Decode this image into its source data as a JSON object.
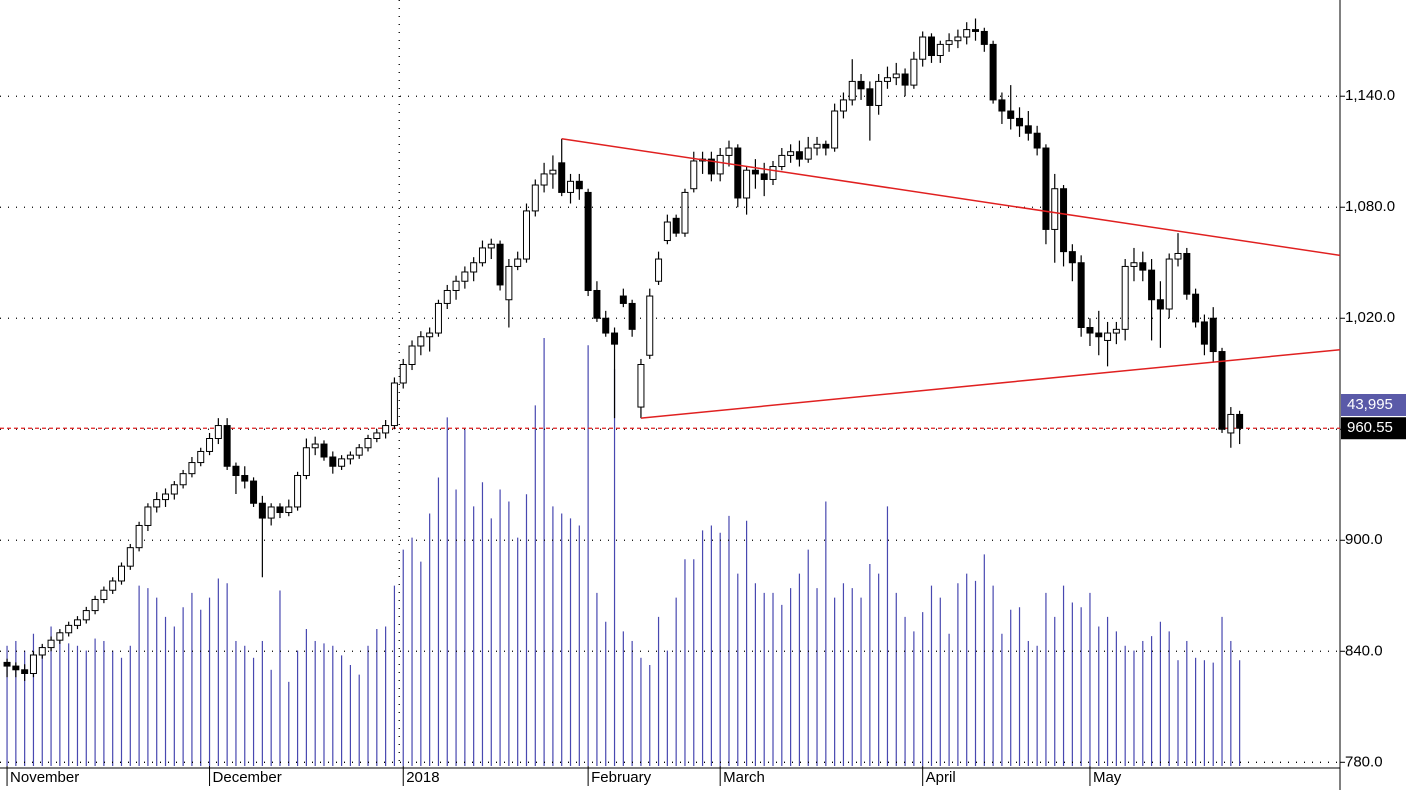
{
  "chart_data": {
    "type": "candlestick",
    "xlim": [
      -0.8,
      151.4
    ],
    "xticks": [
      {
        "value": 0,
        "label": "November"
      },
      {
        "value": 23,
        "label": "December"
      },
      {
        "value": 45,
        "label": "2018"
      },
      {
        "value": 66,
        "label": "February"
      },
      {
        "value": 81,
        "label": "March"
      },
      {
        "value": 104,
        "label": "April"
      },
      {
        "value": 123,
        "label": "May"
      }
    ],
    "ylim": [
      778,
      1192
    ],
    "yticks": [
      {
        "value": 780,
        "label": "780.0"
      },
      {
        "value": 840,
        "label": "840.0"
      },
      {
        "value": 900,
        "label": "900.0"
      },
      {
        "value": 960,
        "label": "960.0"
      },
      {
        "value": 1020,
        "label": "1,020.0"
      },
      {
        "value": 1080,
        "label": "1,080.0"
      },
      {
        "value": 1140,
        "label": "1,140.0"
      }
    ],
    "grid": true,
    "up_color": "#ffffff",
    "down_color": "#000000",
    "candles": [
      [
        834,
        836,
        826,
        832
      ],
      [
        832,
        834,
        826,
        830
      ],
      [
        830,
        833,
        824,
        828
      ],
      [
        828,
        840,
        826,
        838
      ],
      [
        838,
        844,
        836,
        842
      ],
      [
        842,
        848,
        840,
        846
      ],
      [
        846,
        852,
        844,
        850
      ],
      [
        850,
        856,
        848,
        854
      ],
      [
        854,
        859,
        852,
        857
      ],
      [
        857,
        864,
        855,
        862
      ],
      [
        862,
        870,
        860,
        868
      ],
      [
        868,
        875,
        866,
        873
      ],
      [
        873,
        880,
        871,
        878
      ],
      [
        878,
        888,
        876,
        886
      ],
      [
        886,
        898,
        884,
        896
      ],
      [
        896,
        910,
        894,
        908
      ],
      [
        908,
        920,
        905,
        918
      ],
      [
        918,
        926,
        915,
        922
      ],
      [
        922,
        928,
        918,
        925
      ],
      [
        925,
        932,
        922,
        930
      ],
      [
        930,
        938,
        928,
        936
      ],
      [
        936,
        945,
        934,
        942
      ],
      [
        942,
        950,
        940,
        948
      ],
      [
        948,
        958,
        946,
        955
      ],
      [
        955,
        966,
        952,
        962
      ],
      [
        962,
        966,
        938,
        940
      ],
      [
        940,
        942,
        925,
        935
      ],
      [
        935,
        940,
        928,
        932
      ],
      [
        932,
        934,
        918,
        920
      ],
      [
        920,
        924,
        880,
        912
      ],
      [
        912,
        920,
        908,
        918
      ],
      [
        918,
        920,
        912,
        915
      ],
      [
        915,
        922,
        913,
        918
      ],
      [
        918,
        937,
        916,
        935
      ],
      [
        935,
        955,
        933,
        950
      ],
      [
        950,
        956,
        946,
        952
      ],
      [
        952,
        954,
        943,
        945
      ],
      [
        945,
        948,
        936,
        940
      ],
      [
        940,
        946,
        938,
        944
      ],
      [
        944,
        948,
        941,
        946
      ],
      [
        946,
        952,
        944,
        950
      ],
      [
        950,
        957,
        948,
        955
      ],
      [
        955,
        960,
        953,
        958
      ],
      [
        958,
        965,
        955,
        962
      ],
      [
        962,
        988,
        960,
        985
      ],
      [
        985,
        998,
        982,
        995
      ],
      [
        995,
        1008,
        992,
        1005
      ],
      [
        1005,
        1013,
        1000,
        1010
      ],
      [
        1010,
        1015,
        1002,
        1012
      ],
      [
        1012,
        1030,
        1010,
        1028
      ],
      [
        1028,
        1038,
        1025,
        1035
      ],
      [
        1035,
        1043,
        1030,
        1040
      ],
      [
        1040,
        1048,
        1036,
        1045
      ],
      [
        1045,
        1053,
        1040,
        1050
      ],
      [
        1050,
        1062,
        1048,
        1058
      ],
      [
        1058,
        1063,
        1052,
        1060
      ],
      [
        1060,
        1062,
        1035,
        1038
      ],
      [
        1030,
        1052,
        1015,
        1048
      ],
      [
        1048,
        1056,
        1046,
        1052
      ],
      [
        1052,
        1082,
        1050,
        1078
      ],
      [
        1078,
        1095,
        1075,
        1092
      ],
      [
        1092,
        1104,
        1088,
        1098
      ],
      [
        1098,
        1108,
        1090,
        1100
      ],
      [
        1104,
        1117,
        1086,
        1088
      ],
      [
        1088,
        1098,
        1082,
        1094
      ],
      [
        1094,
        1098,
        1084,
        1090
      ],
      [
        1088,
        1090,
        1032,
        1035
      ],
      [
        1035,
        1040,
        1018,
        1020
      ],
      [
        1020,
        1024,
        1010,
        1012
      ],
      [
        1012,
        1015,
        966,
        1006
      ],
      [
        1032,
        1036,
        1026,
        1028
      ],
      [
        1028,
        1030,
        1010,
        1014
      ],
      [
        972,
        998,
        966,
        995
      ],
      [
        1000,
        1036,
        998,
        1032
      ],
      [
        1040,
        1056,
        1038,
        1052
      ],
      [
        1062,
        1076,
        1060,
        1072
      ],
      [
        1074,
        1076,
        1064,
        1066
      ],
      [
        1066,
        1090,
        1064,
        1088
      ],
      [
        1090,
        1110,
        1088,
        1105
      ],
      [
        1105,
        1110,
        1098,
        1106
      ],
      [
        1106,
        1110,
        1094,
        1098
      ],
      [
        1098,
        1112,
        1094,
        1108
      ],
      [
        1108,
        1116,
        1102,
        1112
      ],
      [
        1112,
        1114,
        1080,
        1085
      ],
      [
        1085,
        1102,
        1076,
        1100
      ],
      [
        1100,
        1106,
        1090,
        1098
      ],
      [
        1098,
        1104,
        1086,
        1095
      ],
      [
        1095,
        1105,
        1092,
        1102
      ],
      [
        1102,
        1112,
        1100,
        1108
      ],
      [
        1108,
        1114,
        1104,
        1110
      ],
      [
        1110,
        1116,
        1102,
        1106
      ],
      [
        1106,
        1118,
        1104,
        1112
      ],
      [
        1112,
        1118,
        1108,
        1114
      ],
      [
        1114,
        1116,
        1108,
        1112
      ],
      [
        1112,
        1136,
        1110,
        1132
      ],
      [
        1132,
        1142,
        1128,
        1138
      ],
      [
        1138,
        1160,
        1135,
        1148
      ],
      [
        1148,
        1152,
        1138,
        1144
      ],
      [
        1144,
        1148,
        1116,
        1135
      ],
      [
        1135,
        1152,
        1130,
        1148
      ],
      [
        1148,
        1156,
        1144,
        1150
      ],
      [
        1150,
        1158,
        1146,
        1152
      ],
      [
        1152,
        1155,
        1140,
        1146
      ],
      [
        1146,
        1164,
        1144,
        1160
      ],
      [
        1160,
        1175,
        1156,
        1172
      ],
      [
        1172,
        1174,
        1158,
        1162
      ],
      [
        1162,
        1170,
        1158,
        1168
      ],
      [
        1168,
        1174,
        1164,
        1170
      ],
      [
        1170,
        1176,
        1166,
        1172
      ],
      [
        1172,
        1180,
        1168,
        1176
      ],
      [
        1176,
        1182,
        1170,
        1175
      ],
      [
        1175,
        1177,
        1164,
        1168
      ],
      [
        1168,
        1170,
        1136,
        1138
      ],
      [
        1138,
        1142,
        1125,
        1132
      ],
      [
        1132,
        1146,
        1122,
        1128
      ],
      [
        1128,
        1134,
        1118,
        1124
      ],
      [
        1124,
        1132,
        1116,
        1120
      ],
      [
        1120,
        1124,
        1108,
        1112
      ],
      [
        1112,
        1114,
        1060,
        1068
      ],
      [
        1068,
        1098,
        1050,
        1090
      ],
      [
        1090,
        1092,
        1048,
        1056
      ],
      [
        1056,
        1060,
        1040,
        1050
      ],
      [
        1050,
        1054,
        1010,
        1015
      ],
      [
        1015,
        1020,
        1005,
        1012
      ],
      [
        1012,
        1024,
        1000,
        1010
      ],
      [
        1008,
        1018,
        994,
        1012
      ],
      [
        1012,
        1018,
        1006,
        1014
      ],
      [
        1014,
        1052,
        1008,
        1048
      ],
      [
        1048,
        1058,
        1040,
        1050
      ],
      [
        1050,
        1056,
        1040,
        1046
      ],
      [
        1046,
        1052,
        1008,
        1030
      ],
      [
        1030,
        1040,
        1004,
        1025
      ],
      [
        1025,
        1055,
        1020,
        1052
      ],
      [
        1052,
        1066,
        1048,
        1055
      ],
      [
        1055,
        1058,
        1030,
        1033
      ],
      [
        1033,
        1036,
        1015,
        1018
      ],
      [
        1018,
        1022,
        1000,
        1006
      ],
      [
        1020,
        1026,
        996,
        1002
      ],
      [
        1002,
        1004,
        958,
        960
      ],
      [
        958,
        972,
        950,
        968
      ],
      [
        968,
        970,
        952,
        960.55
      ]
    ],
    "last_close_label": "960.55",
    "volume": {
      "color": "#4848b0",
      "last_label": "43,995",
      "values": [
        50000,
        52000,
        48000,
        55000,
        50000,
        58000,
        52000,
        51000,
        50000,
        48000,
        53000,
        52000,
        48000,
        45000,
        50000,
        75000,
        74000,
        70000,
        62000,
        58000,
        66000,
        72000,
        65000,
        70000,
        78000,
        76000,
        52000,
        50000,
        45000,
        52000,
        40000,
        73000,
        35000,
        48000,
        57000,
        52000,
        51000,
        50000,
        46000,
        42000,
        38000,
        50000,
        57000,
        58000,
        75000,
        90000,
        95000,
        85000,
        105000,
        120000,
        145000,
        115000,
        140000,
        108000,
        118000,
        103000,
        115000,
        110000,
        95000,
        113000,
        150000,
        178000,
        108000,
        105000,
        103000,
        100000,
        175000,
        72000,
        60000,
        165000,
        56000,
        52000,
        45000,
        42000,
        62000,
        48000,
        70000,
        86000,
        86000,
        98000,
        100000,
        97000,
        104000,
        80000,
        102000,
        76000,
        72000,
        72000,
        67000,
        74000,
        80000,
        90000,
        74000,
        110000,
        70000,
        76000,
        74000,
        70000,
        84000,
        80000,
        108000,
        72000,
        62000,
        56000,
        64000,
        75000,
        70000,
        55000,
        76000,
        80000,
        77000,
        88000,
        75000,
        55000,
        65000,
        66000,
        52000,
        50000,
        72000,
        62000,
        75000,
        68000,
        66000,
        72000,
        58000,
        62000,
        56000,
        50000,
        48000,
        52000,
        54000,
        60000,
        56000,
        44000,
        52000,
        45000,
        44000,
        43000,
        62000,
        52000,
        43995
      ]
    },
    "trendlines": [
      {
        "color": "#e02020",
        "x": [
          63,
          151.4
        ],
        "y": [
          1117,
          1054
        ]
      },
      {
        "color": "#e02020",
        "x": [
          72,
          151.4
        ],
        "y": [
          966,
          1003
        ]
      }
    ]
  }
}
